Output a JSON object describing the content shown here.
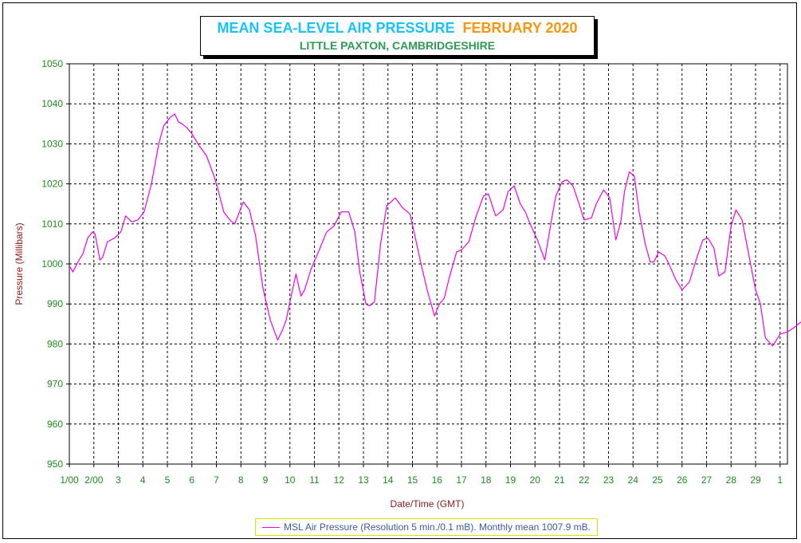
{
  "title": {
    "main": "MEAN SEA-LEVEL AIR PRESSURE",
    "month": "FEBRUARY 2020",
    "subtitle": "LITTLE PAXTON, CAMBRIDGESHIRE"
  },
  "legend": {
    "label": "MSL Air Pressure (Resolution 5 min./0.1 mB). Monthly mean 1007.9 mB."
  },
  "colors": {
    "series": "#ee00ee",
    "ticks": "#1e8c1e",
    "axis_titles": "#8b1a1a",
    "title_main": "#19c3f5",
    "title_month": "#f5960f",
    "subtitle": "#2e9a55"
  },
  "chart_data": {
    "type": "line",
    "title": "MEAN SEA-LEVEL AIR PRESSURE FEBRUARY 2020",
    "subtitle": "LITTLE PAXTON, CAMBRIDGESHIRE",
    "xlabel": "Date/Time (GMT)",
    "ylabel": "Pressure (Millibars)",
    "ylim": [
      950,
      1050
    ],
    "yticks": [
      950,
      960,
      970,
      980,
      990,
      1000,
      1010,
      1020,
      1030,
      1040,
      1050
    ],
    "xlim": [
      1,
      30.85
    ],
    "xtick_labels": [
      "1/00",
      "2/00",
      "3",
      "4",
      "5",
      "6",
      "7",
      "8",
      "9",
      "10",
      "11",
      "12",
      "13",
      "14",
      "15",
      "16",
      "17",
      "18",
      "19",
      "20",
      "21",
      "22",
      "23",
      "24",
      "25",
      "26",
      "27",
      "28",
      "29",
      "1"
    ],
    "grid": true,
    "legend_position": "bottom",
    "series": [
      {
        "name": "MSL Air Pressure (Resolution 5 min./0.1 mB). Monthly mean 1007.9 mB.",
        "x": [
          1.0,
          1.15,
          1.35,
          1.55,
          1.75,
          1.95,
          2.05,
          2.25,
          2.35,
          2.55,
          2.85,
          3.1,
          3.3,
          3.55,
          3.8,
          4.05,
          4.35,
          4.65,
          4.85,
          5.1,
          5.3,
          5.45,
          5.6,
          5.8,
          6.0,
          6.3,
          6.6,
          6.9,
          7.05,
          7.3,
          7.55,
          7.75,
          8.1,
          8.35,
          8.6,
          8.9,
          9.2,
          9.5,
          9.7,
          9.85,
          10.05,
          10.25,
          10.45,
          10.6,
          10.85,
          11.2,
          11.5,
          11.8,
          12.1,
          12.4,
          12.65,
          12.85,
          13.1,
          13.25,
          13.45,
          13.7,
          13.95,
          14.3,
          14.6,
          14.9,
          15.1,
          15.35,
          15.6,
          15.9,
          16.1,
          16.3,
          16.5,
          16.8,
          17.0,
          17.3,
          17.6,
          17.9,
          18.1,
          18.4,
          18.7,
          18.9,
          19.15,
          19.4,
          19.6,
          19.8,
          20.1,
          20.4,
          20.7,
          20.85,
          21.1,
          21.3,
          21.55,
          21.8,
          22.0,
          22.3,
          22.5,
          22.8,
          23.05,
          23.3,
          23.5,
          23.65,
          23.85,
          24.05,
          24.25,
          24.5,
          24.7,
          24.85,
          25.05,
          25.3,
          25.5,
          25.75,
          26.0,
          26.3,
          26.6,
          26.85,
          27.05,
          27.3,
          27.5,
          27.75,
          28.0,
          28.2,
          28.45,
          28.7,
          29.0,
          29.2,
          29.4,
          29.7,
          30.0,
          30.3,
          30.55,
          30.75,
          30.85
        ],
        "y": [
          999.5,
          998.0,
          1000.5,
          1002.5,
          1006.5,
          1008.0,
          1007.5,
          1001.0,
          1001.5,
          1005.5,
          1006.5,
          1008.0,
          1012.0,
          1010.5,
          1011.0,
          1013.0,
          1020.0,
          1030.0,
          1034.5,
          1036.5,
          1037.5,
          1035.5,
          1035.0,
          1034.0,
          1032.5,
          1029.5,
          1027.0,
          1022.0,
          1019.0,
          1013.0,
          1011.0,
          1010.0,
          1015.5,
          1013.5,
          1007.0,
          994.0,
          986.0,
          981.0,
          983.5,
          986.0,
          992.0,
          997.5,
          992.0,
          993.5,
          998.5,
          1003.5,
          1008.0,
          1009.5,
          1013.0,
          1013.0,
          1008.0,
          998.0,
          990.0,
          989.5,
          990.5,
          1005.0,
          1014.5,
          1016.5,
          1014.0,
          1012.5,
          1007.0,
          1000.0,
          993.5,
          987.0,
          990.0,
          991.5,
          996.5,
          1003.0,
          1003.5,
          1005.5,
          1012.0,
          1017.0,
          1017.5,
          1012.0,
          1013.5,
          1018.0,
          1019.5,
          1015.0,
          1013.0,
          1010.0,
          1006.0,
          1001.0,
          1012.0,
          1017.0,
          1020.5,
          1021.0,
          1019.5,
          1015.0,
          1011.0,
          1011.5,
          1015.0,
          1018.5,
          1016.5,
          1006.0,
          1010.5,
          1018.0,
          1023.0,
          1022.0,
          1013.0,
          1005.0,
          1000.5,
          1000.5,
          1003.0,
          1002.0,
          999.5,
          996.0,
          993.5,
          995.5,
          1001.5,
          1006.0,
          1006.5,
          1004.0,
          997.0,
          998.0,
          1009.5,
          1013.5,
          1011.0,
          1003.0,
          993.5,
          990.0,
          981.5,
          979.5,
          982.5,
          983.0,
          984.0,
          985.0,
          985.5
        ]
      }
    ]
  }
}
